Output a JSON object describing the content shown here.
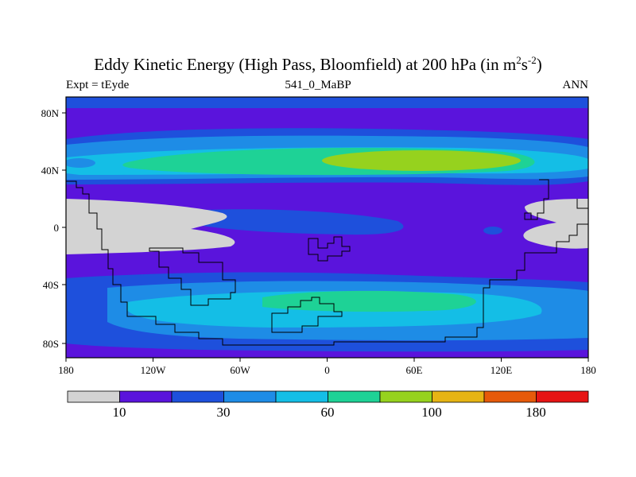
{
  "title_prefix": "Eddy Kinetic Energy (High Pass, Bloomfield) at 200 hPa (in m",
  "title_exp1": "2",
  "title_mid": "s",
  "title_exp2": "-2",
  "title_suffix": ")",
  "subtitle_left": "Expt = tEyde",
  "subtitle_center": "541_0_MaBP",
  "subtitle_right": "ANN",
  "lat_labels": [
    "80N",
    "40N",
    "0",
    "40S",
    "80S"
  ],
  "lon_labels": [
    "180",
    "120W",
    "60W",
    "0",
    "60E",
    "120E",
    "180"
  ],
  "colorbar": {
    "labels": [
      "10",
      "30",
      "60",
      "100",
      "180"
    ],
    "colors": [
      "#d3d3d3",
      "#5a14dc",
      "#1e50dc",
      "#1e8ce6",
      "#14bee6",
      "#1ed296",
      "#96d21e",
      "#e6b414",
      "#e65a0a",
      "#e61414"
    ]
  },
  "map_colors": {
    "background": "#5a14dc",
    "low": "#d3d3d3",
    "mid1": "#1e50dc",
    "mid2": "#1e8ce6",
    "mid3": "#14bee6",
    "mid4": "#1ed296",
    "high": "#96d21e"
  }
}
